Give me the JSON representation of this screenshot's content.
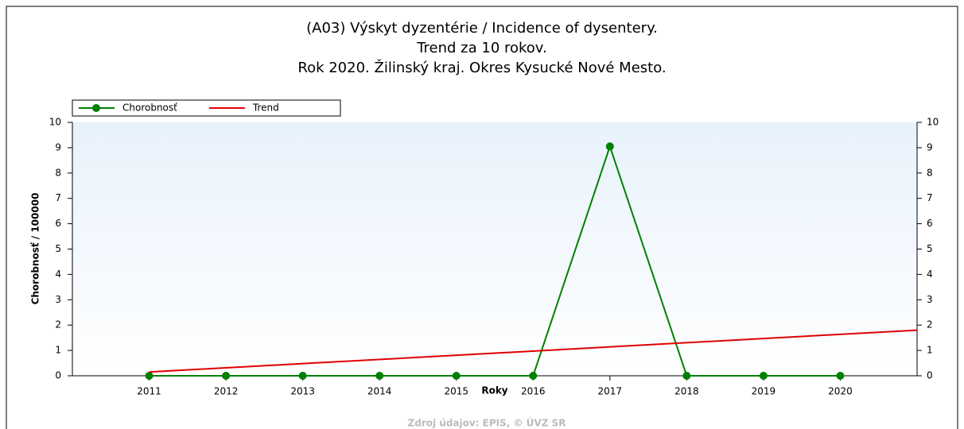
{
  "chart_data": {
    "type": "line",
    "title": [
      "(A03) Výskyt dyzentérie / Incidence of dysentery.",
      "Trend za 10 rokov.",
      "Rok 2020. Žilinský kraj. Okres Kysucké Nové Mesto."
    ],
    "x_label": "Roky",
    "y_label": "Chorobnosť / 100000",
    "source": "Zdroj údajov: EPIS, © ÚVZ SR",
    "x": [
      2011,
      2012,
      2013,
      2014,
      2015,
      2016,
      2017,
      2018,
      2019,
      2020
    ],
    "series": [
      {
        "name": "Chorobnosť",
        "color": "#008000",
        "markers": true,
        "values": [
          0,
          0,
          0,
          0,
          0,
          0,
          9.05,
          0,
          0,
          0
        ]
      },
      {
        "name": "Trend",
        "color": "#e00000",
        "markers": false,
        "x": [
          2011,
          2021
        ],
        "values": [
          0.15,
          1.8
        ]
      }
    ],
    "xlim": [
      2010,
      2021
    ],
    "xticks": [
      2011,
      2012,
      2013,
      2014,
      2015,
      2016,
      2017,
      2018,
      2019,
      2020
    ],
    "ylim": [
      0,
      10
    ],
    "yticks": [
      0,
      1,
      2,
      3,
      4,
      5,
      6,
      7,
      8,
      9,
      10
    ],
    "y2lim": [
      0,
      10
    ],
    "y2ticks": [
      0,
      1,
      2,
      3,
      4,
      5,
      6,
      7,
      8,
      9,
      10
    ],
    "legend": "top-left"
  }
}
